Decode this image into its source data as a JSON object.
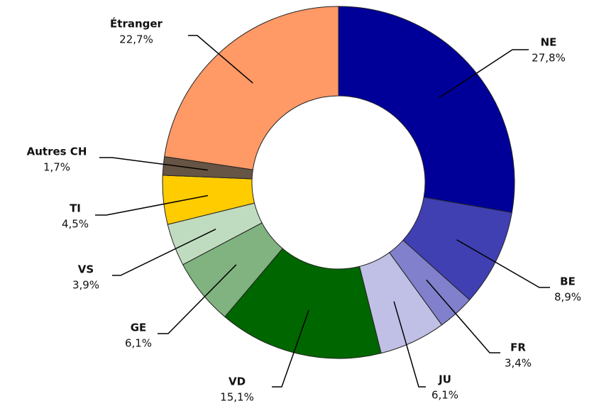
{
  "chart_data": {
    "type": "donut",
    "categories": [
      "NE",
      "BE",
      "FR",
      "JU",
      "VD",
      "GE",
      "VS",
      "TI",
      "Autres CH",
      "Étranger"
    ],
    "values": [
      27.8,
      8.9,
      3.4,
      6.1,
      15.1,
      6.1,
      3.9,
      4.5,
      1.7,
      22.7
    ],
    "value_labels": [
      "27,8%",
      "8,9%",
      "3,4%",
      "6,1%",
      "15,1%",
      "6,1%",
      "3,9%",
      "4,5%",
      "1,7%",
      "22,7%"
    ],
    "colors": [
      "#000099",
      "#4040b3",
      "#8080cc",
      "#c0c0e6",
      "#006600",
      "#80b380",
      "#c0dcc0",
      "#ffcc00",
      "#665544",
      "#ff9966"
    ]
  }
}
